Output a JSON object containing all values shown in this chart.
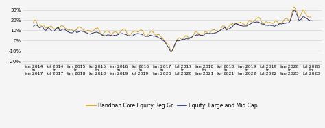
{
  "title": "",
  "x_tick_labels": [
    "Jan 2014\nto\nJan 2017",
    "Jul 2014\nto\nJul 2017",
    "Jan 2015\nto\nJan 2018",
    "Jul 2015\nto\nJul 2018",
    "Jan 2016\nto\nJan 2019",
    "Jul 2016\nto\nJul 2019",
    "Jan 2017\nto\nJan 2020",
    "Jul 2017\nto\nJul 2020",
    "Jan 2018\nto\nJan 2021",
    "Jul 2018\nto\nJul 2021",
    "Jan 2019\nto\nJan 2022",
    "Jul 2019\nto\nJul 2022",
    "Jan 2020\nto\nJan 2023",
    "Jul 2020\nto\nJul 2023"
  ],
  "y_ticks": [
    -20,
    -10,
    0,
    10,
    20,
    30
  ],
  "ylim": [
    -23,
    36
  ],
  "gold_color": "#D4A017",
  "navy_color": "#1B2A6B",
  "background_color": "#f5f5f5",
  "grid_color": "#cccccc",
  "legend_gold": "Bandhan Core Equity Reg Gr",
  "legend_navy": "Equity: Large and Mid Cap",
  "tick_fontsize": 5.0,
  "legend_fontsize": 5.5
}
